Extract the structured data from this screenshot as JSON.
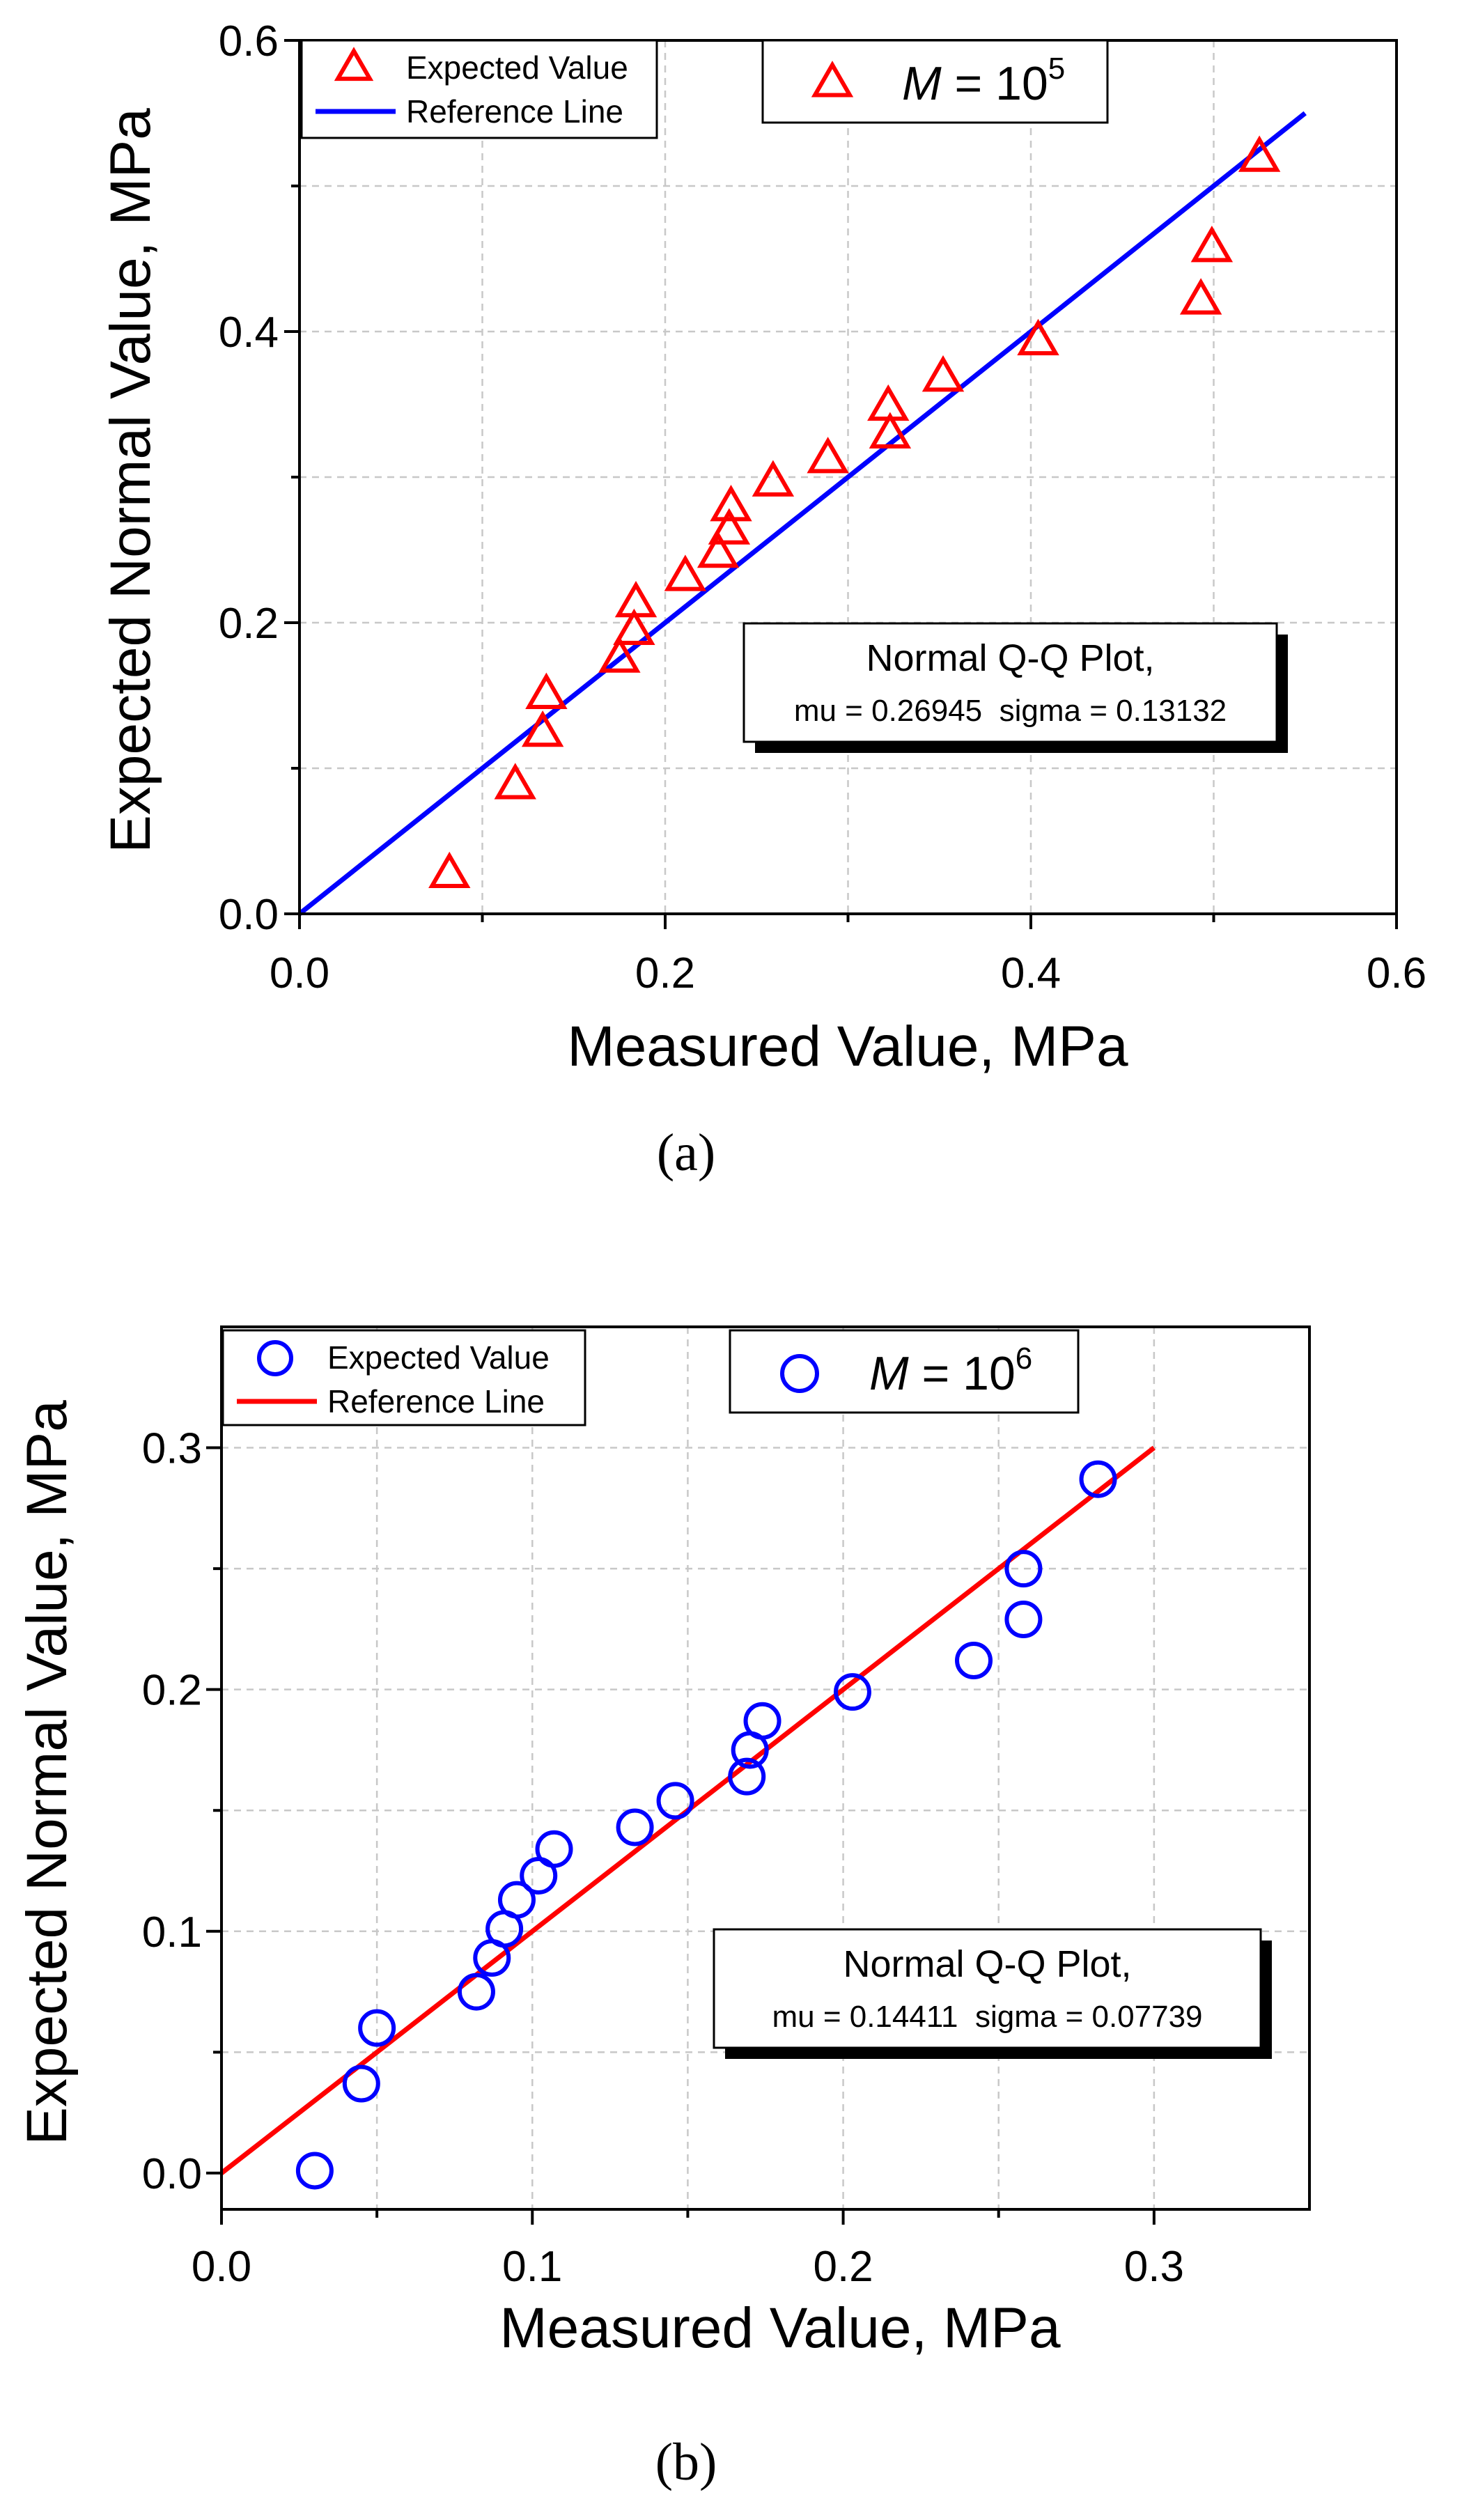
{
  "chart_data": [
    {
      "type": "scatter",
      "panel_label": "(a)",
      "xlabel": "Measured Value, MPa",
      "ylabel": "Expected Normal Value, MPa",
      "xlim": [
        0,
        0.6
      ],
      "ylim": [
        0,
        0.6
      ],
      "x_ticks": [
        "0.0",
        "0.2",
        "0.4",
        "0.6"
      ],
      "y_ticks": [
        "0.0",
        "0.2",
        "0.4",
        "0.6"
      ],
      "x_tick_values": [
        0,
        0.2,
        0.4,
        0.6
      ],
      "y_tick_values": [
        0,
        0.2,
        0.4,
        0.6
      ],
      "grid": true,
      "legend": {
        "placement": "top-left",
        "entries": [
          "Expected Value",
          "Reference Line"
        ]
      },
      "annotation_m": {
        "prefix": "M",
        "base": " = 10",
        "exponent": "5"
      },
      "stats_box": {
        "line1": "Normal Q-Q Plot,",
        "line2": "mu = 0.26945  sigma = 0.13132"
      },
      "marker": "triangle",
      "marker_color": "#ff0000",
      "line_color": "#0000ff",
      "series": [
        {
          "name": "Expected Value",
          "points": [
            [
              0.082,
              0.027
            ],
            [
              0.118,
              0.088
            ],
            [
              0.133,
              0.124
            ],
            [
              0.135,
              0.15
            ],
            [
              0.175,
              0.175
            ],
            [
              0.183,
              0.194
            ],
            [
              0.184,
              0.213
            ],
            [
              0.211,
              0.231
            ],
            [
              0.229,
              0.247
            ],
            [
              0.235,
              0.263
            ],
            [
              0.236,
              0.279
            ],
            [
              0.259,
              0.296
            ],
            [
              0.289,
              0.312
            ],
            [
              0.323,
              0.329
            ],
            [
              0.322,
              0.348
            ],
            [
              0.352,
              0.368
            ],
            [
              0.404,
              0.393
            ],
            [
              0.493,
              0.421
            ],
            [
              0.499,
              0.457
            ],
            [
              0.525,
              0.519
            ]
          ]
        },
        {
          "name": "Reference Line",
          "line": [
            [
              0,
              0
            ],
            [
              0.55,
              0.55
            ]
          ]
        }
      ]
    },
    {
      "type": "scatter",
      "panel_label": "(b)",
      "xlabel": "Measured Value, MPa",
      "ylabel": "Expected Normal Value, MPa",
      "xlim": [
        0,
        0.35
      ],
      "ylim": [
        -0.015,
        0.35
      ],
      "x_ticks": [
        "0.0",
        "0.1",
        "0.2",
        "0.3"
      ],
      "y_ticks": [
        "0.0",
        "0.1",
        "0.2",
        "0.3"
      ],
      "x_tick_values": [
        0,
        0.1,
        0.2,
        0.3
      ],
      "y_tick_values": [
        0,
        0.1,
        0.2,
        0.3
      ],
      "grid": true,
      "legend": {
        "placement": "top-left",
        "entries": [
          "Expected Value",
          "Reference Line"
        ]
      },
      "annotation_m": {
        "prefix": "M",
        "base": " = 10",
        "exponent": "6"
      },
      "stats_box": {
        "line1": "Normal Q-Q Plot,",
        "line2": "mu = 0.14411  sigma = 0.07739"
      },
      "marker": "circle",
      "marker_color": "#0000ff",
      "line_color": "#ff0000",
      "series": [
        {
          "name": "Expected Value",
          "points": [
            [
              0.03,
              0.001
            ],
            [
              0.045,
              0.037
            ],
            [
              0.05,
              0.06
            ],
            [
              0.082,
              0.075
            ],
            [
              0.087,
              0.089
            ],
            [
              0.091,
              0.101
            ],
            [
              0.095,
              0.113
            ],
            [
              0.102,
              0.123
            ],
            [
              0.107,
              0.134
            ],
            [
              0.133,
              0.143
            ],
            [
              0.146,
              0.154
            ],
            [
              0.169,
              0.164
            ],
            [
              0.17,
              0.175
            ],
            [
              0.174,
              0.187
            ],
            [
              0.203,
              0.199
            ],
            [
              0.242,
              0.212
            ],
            [
              0.258,
              0.229
            ],
            [
              0.258,
              0.25
            ],
            [
              0.282,
              0.287
            ]
          ]
        },
        {
          "name": "Reference Line",
          "line": [
            [
              0,
              0
            ],
            [
              0.3,
              0.3
            ]
          ]
        }
      ]
    }
  ]
}
